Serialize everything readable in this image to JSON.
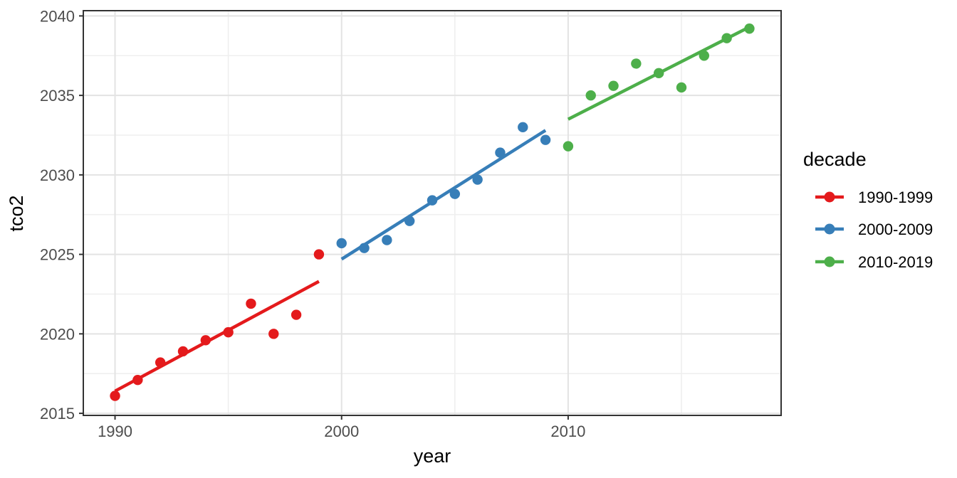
{
  "chart_data": {
    "type": "scatter",
    "title": "",
    "xlabel": "year",
    "ylabel": "tco2",
    "xlim": [
      1988.6,
      2019.4
    ],
    "ylim": [
      2014.87,
      2040.33
    ],
    "x_ticks": [
      1990,
      2000,
      2010
    ],
    "y_ticks": [
      2015,
      2020,
      2025,
      2030,
      2035,
      2040
    ],
    "x_minor": [
      1995,
      2005,
      2015
    ],
    "y_minor": [
      2017.5,
      2022.5,
      2027.5,
      2032.5,
      2037.5
    ],
    "grid": "major-and-minor",
    "panel_style": {
      "background": "#FFFFFF",
      "border_color": "#333333",
      "major_grid_color": "#E3E3E3",
      "minor_grid_color": "#EFEFEF",
      "tick_color": "#333333",
      "tick_label_color": "#4D4D4D",
      "axis_title_color": "#000000"
    },
    "legend": {
      "title": "decade",
      "position": "right",
      "key_glyph": "line-with-point"
    },
    "series": [
      {
        "name": "1990-1999",
        "color": "#E41A1C",
        "points": [
          [
            1990,
            2016.1
          ],
          [
            1991,
            2017.1
          ],
          [
            1992,
            2018.2
          ],
          [
            1993,
            2018.9
          ],
          [
            1994,
            2019.6
          ],
          [
            1995,
            2020.1
          ],
          [
            1996,
            2021.9
          ],
          [
            1997,
            2020.0
          ],
          [
            1998,
            2021.2
          ],
          [
            1999,
            2025.0
          ]
        ],
        "trend": {
          "x1": 1990,
          "y1": 2016.4,
          "x2": 1999,
          "y2": 2023.3
        }
      },
      {
        "name": "2000-2009",
        "color": "#377EB8",
        "points": [
          [
            2000,
            2025.7
          ],
          [
            2001,
            2025.4
          ],
          [
            2002,
            2025.9
          ],
          [
            2003,
            2027.1
          ],
          [
            2004,
            2028.4
          ],
          [
            2005,
            2028.8
          ],
          [
            2006,
            2029.7
          ],
          [
            2007,
            2031.4
          ],
          [
            2008,
            2033.0
          ],
          [
            2009,
            2032.2
          ]
        ],
        "trend": {
          "x1": 2000,
          "y1": 2024.7,
          "x2": 2009,
          "y2": 2032.8
        }
      },
      {
        "name": "2010-2019",
        "color": "#4DAF4A",
        "points": [
          [
            2010,
            2031.8
          ],
          [
            2011,
            2035.0
          ],
          [
            2012,
            2035.6
          ],
          [
            2013,
            2037.0
          ],
          [
            2014,
            2036.4
          ],
          [
            2015,
            2035.5
          ],
          [
            2016,
            2037.5
          ],
          [
            2017,
            2038.6
          ],
          [
            2018,
            2039.2
          ]
        ],
        "trend": {
          "x1": 2010,
          "y1": 2033.5,
          "x2": 2018,
          "y2": 2039.3
        }
      }
    ]
  }
}
